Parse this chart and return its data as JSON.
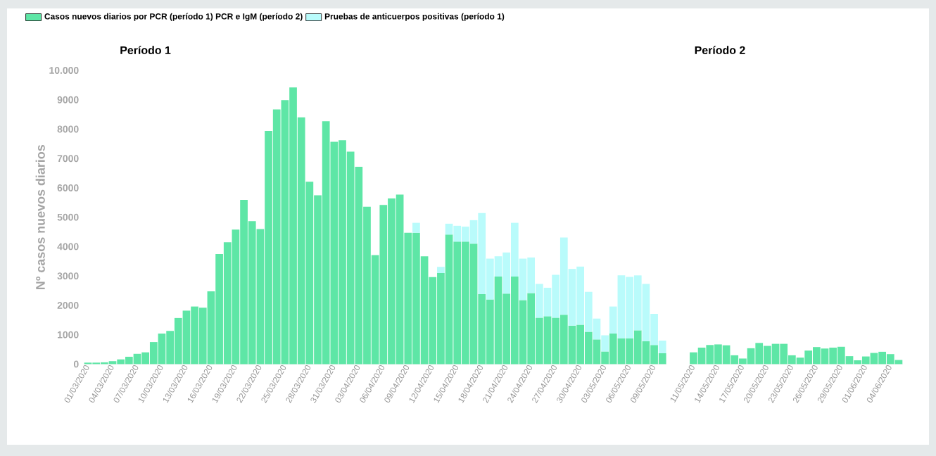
{
  "chart_data": [
    {
      "type": "bar",
      "stacked": true,
      "title": "Período 1",
      "ylabel": "Nº casos nuevos diarios",
      "legend": "top left",
      "categories": [
        "01/03/2020",
        null,
        null,
        "04/03/2020",
        null,
        null,
        "07/03/2020",
        null,
        null,
        "10/03/2020",
        null,
        null,
        "13/03/2020",
        null,
        null,
        "16/03/2020",
        null,
        null,
        "19/03/2020",
        null,
        null,
        "22/03/2020",
        null,
        null,
        "25/03/2020",
        null,
        null,
        "28/03/2020",
        null,
        null,
        "31/03/2020",
        null,
        null,
        "03/04/2020",
        null,
        null,
        "06/04/2020",
        null,
        null,
        "09/04/2020",
        null,
        null,
        "12/04/2020",
        null,
        null,
        "15/04/2020",
        null,
        null,
        "18/04/2020",
        null,
        null,
        "21/04/2020",
        null,
        null,
        "24/04/2020",
        null,
        null,
        "27/04/2020",
        null,
        null,
        "30/04/2020",
        null,
        null,
        "03/05/2020",
        null,
        null,
        "06/05/2020",
        null,
        null,
        "09/05/2020",
        null
      ],
      "ylim": [
        0,
        10000
      ],
      "yticks": [
        0,
        1000,
        2000,
        3000,
        4000,
        5000,
        6000,
        7000,
        8000,
        9000,
        {
          "value": 10000,
          "label": "10.000"
        }
      ],
      "series": [
        {
          "name": "Casos nuevos diarios por PCR (período 1) PCR e IgM (período 2)",
          "color": "#5ee6a6",
          "values": [
            50,
            50,
            60,
            100,
            160,
            250,
            350,
            400,
            750,
            1040,
            1130,
            1570,
            1820,
            1960,
            1920,
            2480,
            3750,
            4150,
            4580,
            5590,
            4870,
            4600,
            7940,
            8670,
            8990,
            9420,
            8400,
            6210,
            5750,
            8270,
            7570,
            7620,
            7230,
            6720,
            5360,
            3710,
            5420,
            5640,
            5770,
            4470,
            4470,
            3670,
            2960,
            3100,
            4410,
            4170,
            4170,
            4100,
            2380,
            2200,
            2980,
            2400,
            2980,
            2180,
            2420,
            1580,
            1630,
            1580,
            1680,
            1310,
            1340,
            1100,
            840,
            430,
            1040,
            880,
            880,
            1150,
            780,
            650,
            370
          ]
        },
        {
          "name": "Pruebas de anticuerpos positivas (período 1)",
          "color": "#b9fbfb",
          "values": [
            null,
            null,
            null,
            null,
            null,
            null,
            null,
            null,
            null,
            null,
            null,
            null,
            null,
            null,
            null,
            null,
            null,
            null,
            null,
            null,
            null,
            null,
            null,
            null,
            null,
            null,
            null,
            null,
            null,
            null,
            null,
            null,
            null,
            null,
            null,
            null,
            null,
            null,
            null,
            null,
            340,
            null,
            null,
            210,
            370,
            540,
            510,
            800,
            2760,
            1390,
            690,
            1400,
            1830,
            1410,
            1210,
            1150,
            970,
            1460,
            2630,
            1930,
            1980,
            1360,
            710,
            550,
            920,
            2140,
            2090,
            1870,
            1950,
            1060,
            430
          ]
        }
      ]
    },
    {
      "type": "bar",
      "stacked": true,
      "title": "Período 2",
      "tick_labels": "x",
      "categories": [
        "11/05/2020",
        null,
        null,
        "14/05/2020",
        null,
        null,
        "17/05/2020",
        null,
        null,
        "20/05/2020",
        null,
        null,
        "23/05/2020",
        null,
        null,
        "26/05/2020",
        null,
        null,
        "29/05/2020",
        null,
        null,
        "01/06/2020",
        null,
        null,
        "04/06/2020",
        null
      ],
      "ylim": [
        0,
        10000
      ],
      "series": [
        {
          "color": "#5ee6a6",
          "values": [
            400,
            560,
            650,
            670,
            640,
            300,
            190,
            540,
            720,
            620,
            690,
            690,
            300,
            220,
            460,
            580,
            530,
            560,
            590,
            270,
            130,
            260,
            380,
            420,
            340,
            140
          ]
        }
      ]
    }
  ]
}
